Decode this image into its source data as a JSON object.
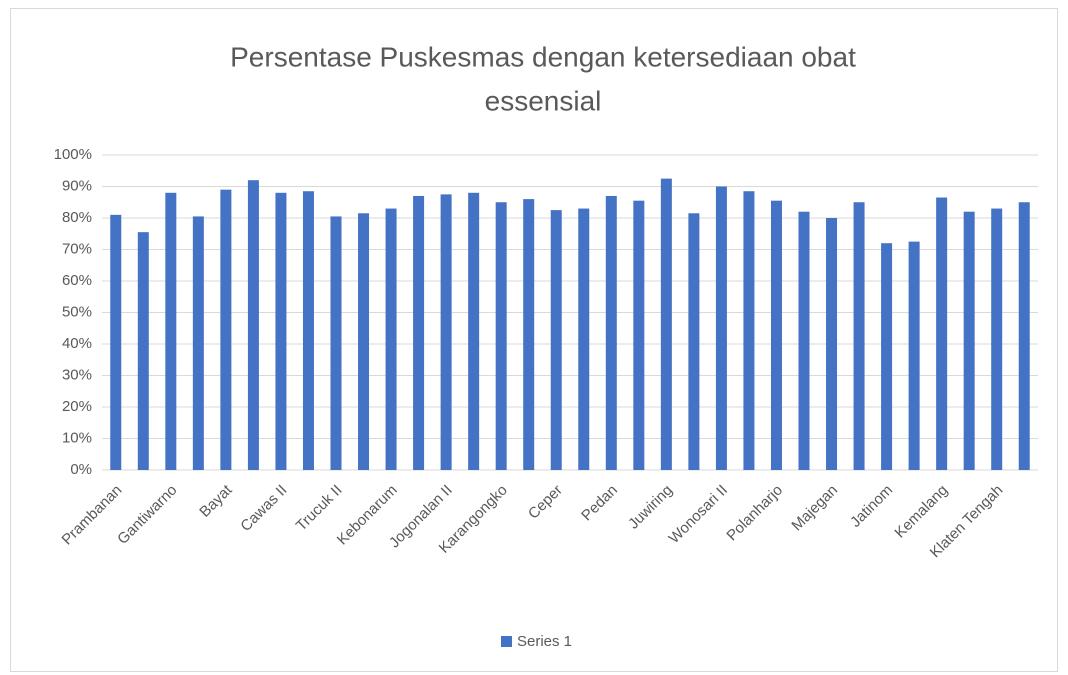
{
  "chart_data": {
    "type": "bar",
    "title": [
      "Persentase Puskesmas dengan ketersediaan obat",
      "essensial"
    ],
    "categories": [
      "Prambanan",
      null,
      "Gantiwarno",
      null,
      "Bayat",
      null,
      "Cawas II",
      null,
      "Trucuk II",
      null,
      "Kebonarum",
      null,
      "Jogonalan II",
      null,
      "Karangongko",
      null,
      "Ceper",
      null,
      "Pedan",
      null,
      "Juwiring",
      null,
      "Wonosari II",
      null,
      "Polanharjo",
      null,
      "Majegan",
      null,
      "Jatinom",
      null,
      "Kemalang",
      null,
      "Klaten Tengah",
      null
    ],
    "series": [
      {
        "name": "Series 1",
        "color": "#4472c4",
        "values": [
          81,
          75.5,
          88,
          80.5,
          89,
          92,
          88,
          88.5,
          80.5,
          81.5,
          83,
          87,
          87.5,
          88,
          85,
          86,
          82.5,
          83,
          87,
          85.5,
          92.5,
          81.5,
          90,
          88.5,
          85.5,
          82,
          80,
          85,
          72,
          72.5,
          86.5,
          82,
          83,
          85
        ]
      }
    ],
    "ylim": [
      0,
      100
    ],
    "yticks": [
      {
        "value": 0,
        "label": "0%"
      },
      {
        "value": 10,
        "label": "10%"
      },
      {
        "value": 20,
        "label": "20%"
      },
      {
        "value": 30,
        "label": "30%"
      },
      {
        "value": 40,
        "label": "40%"
      },
      {
        "value": 50,
        "label": "50%"
      },
      {
        "value": 60,
        "label": "60%"
      },
      {
        "value": 70,
        "label": "70%"
      },
      {
        "value": 80,
        "label": "80%"
      },
      {
        "value": 90,
        "label": "90%"
      },
      {
        "value": 100,
        "label": "100%"
      }
    ],
    "grid": true,
    "legend": "bottom"
  }
}
